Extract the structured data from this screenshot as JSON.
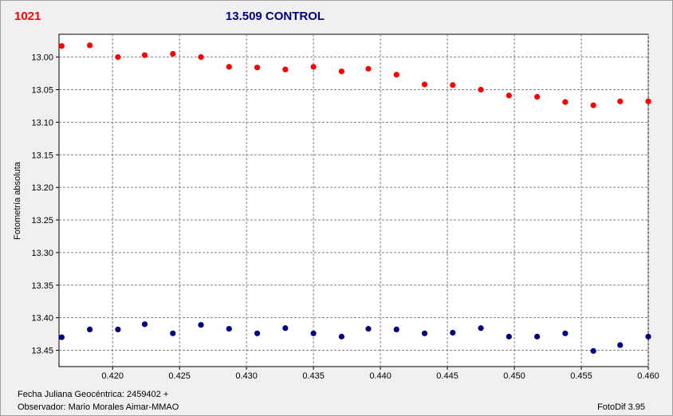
{
  "header": {
    "object_id": "1021",
    "title": "13.509 CONTROL",
    "object_id_color": "#ff0000",
    "title_color": "#000080"
  },
  "footer": {
    "jd_label": "Fecha Juliana Geocéntrica: 2459402 +",
    "observer": "Observador: Mario Morales Aimar-MMAO",
    "software": "FotoDif 3.95"
  },
  "chart_data": {
    "type": "scatter",
    "title": "13.509 CONTROL",
    "xlabel": "",
    "ylabel": "Fotometría absoluta",
    "xlim": [
      0.416,
      0.46
    ],
    "ylim": [
      12.965,
      13.475
    ],
    "y_inverted": true,
    "grid": true,
    "x_ticks": [
      "0.420",
      "0.425",
      "0.430",
      "0.435",
      "0.440",
      "0.445",
      "0.450",
      "0.455",
      "0.460"
    ],
    "y_ticks": [
      "13.00",
      "13.05",
      "13.10",
      "13.15",
      "13.20",
      "13.25",
      "13.30",
      "13.35",
      "13.40",
      "13.45"
    ],
    "series": [
      {
        "color": "#ff0000",
        "x": [
          0.4162,
          0.4183,
          0.4204,
          0.4224,
          0.4245,
          0.4266,
          0.4287,
          0.4308,
          0.4329,
          0.435,
          0.4371,
          0.4391,
          0.4412,
          0.4433,
          0.4454,
          0.4475,
          0.4496,
          0.4517,
          0.4538,
          0.4559,
          0.4579,
          0.46
        ],
        "y": [
          12.983,
          12.982,
          13.0,
          12.997,
          12.995,
          13.0,
          13.015,
          13.016,
          13.019,
          13.015,
          13.022,
          13.018,
          13.027,
          13.042,
          13.043,
          13.05,
          13.059,
          13.061,
          13.069,
          13.074,
          13.068,
          13.068
        ]
      },
      {
        "color": "#000080",
        "x": [
          0.4162,
          0.4183,
          0.4204,
          0.4224,
          0.4245,
          0.4266,
          0.4287,
          0.4308,
          0.4329,
          0.435,
          0.4371,
          0.4391,
          0.4412,
          0.4433,
          0.4454,
          0.4475,
          0.4496,
          0.4517,
          0.4538,
          0.4559,
          0.4579,
          0.46
        ],
        "y": [
          13.43,
          13.418,
          13.418,
          13.41,
          13.424,
          13.411,
          13.417,
          13.424,
          13.416,
          13.424,
          13.429,
          13.417,
          13.418,
          13.424,
          13.423,
          13.416,
          13.429,
          13.429,
          13.424,
          13.451,
          13.442,
          13.429
        ]
      }
    ]
  }
}
